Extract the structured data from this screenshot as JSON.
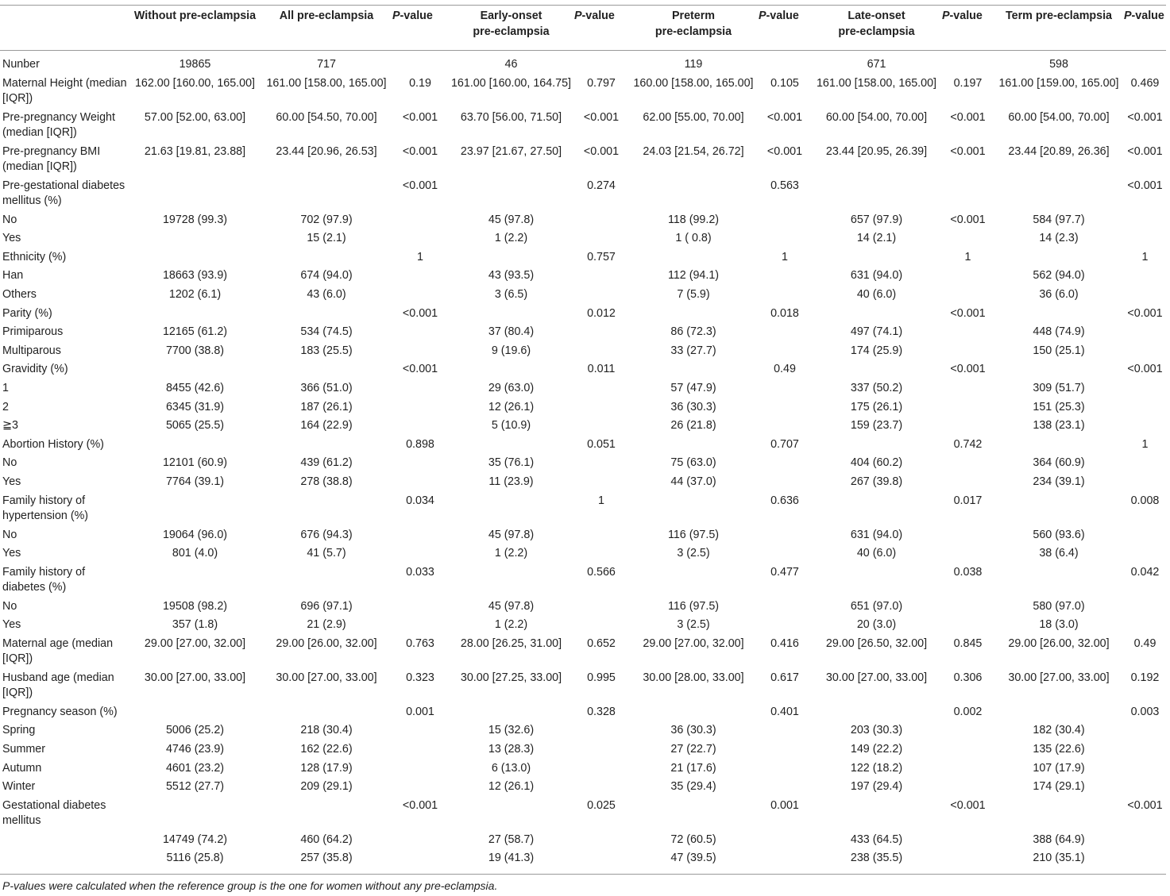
{
  "header": {
    "col0": "",
    "col1": "Without pre-eclampsia",
    "col2": "All pre-eclampsia",
    "p_italic": "P",
    "p_rest": "-value",
    "col4_line1": "Early-onset",
    "col4_line2": "pre-eclampsia",
    "col6_line1": "Preterm",
    "col6_line2": "pre-eclampsia",
    "col8_line1": "Late-onset",
    "col8_line2": "pre-eclampsia",
    "col10": "Term pre-eclampsia"
  },
  "rows": [
    {
      "c": [
        "Nunber",
        "19865",
        "717",
        "",
        "46",
        "",
        "119",
        "",
        "671",
        "",
        "598",
        ""
      ]
    },
    {
      "c": [
        "Maternal Height (median [IQR])",
        "162.00 [160.00, 165.00]",
        "161.00 [158.00, 165.00]",
        "0.19",
        "161.00 [160.00, 164.75]",
        "0.797",
        "160.00 [158.00, 165.00]",
        "0.105",
        "161.00 [158.00, 165.00]",
        "0.197",
        "161.00 [159.00, 165.00]",
        "0.469"
      ]
    },
    {
      "c": [
        "Pre-pregnancy Weight (median [IQR])",
        "57.00 [52.00, 63.00]",
        "60.00 [54.50, 70.00]",
        "<0.001",
        "63.70 [56.00, 71.50]",
        "<0.001",
        "62.00 [55.00, 70.00]",
        "<0.001",
        "60.00 [54.00, 70.00]",
        "<0.001",
        "60.00 [54.00, 70.00]",
        "<0.001"
      ]
    },
    {
      "c": [
        "Pre-pregnancy BMI (median [IQR])",
        "21.63 [19.81, 23.88]",
        "23.44 [20.96, 26.53]",
        "<0.001",
        "23.97 [21.67, 27.50]",
        "<0.001",
        "24.03 [21.54, 26.72]",
        "<0.001",
        "23.44 [20.95, 26.39]",
        "<0.001",
        "23.44 [20.89, 26.36]",
        "<0.001"
      ]
    },
    {
      "c": [
        "Pre-gestational diabetes mellitus (%)",
        "",
        "",
        "<0.001",
        "",
        "0.274",
        "",
        "0.563",
        "",
        "",
        "",
        "<0.001"
      ]
    },
    {
      "c": [
        "No",
        "19728 (99.3)",
        "702 (97.9)",
        "",
        "45 (97.8)",
        "",
        "118 (99.2)",
        "",
        "657 (97.9)",
        "<0.001",
        "584 (97.7)",
        ""
      ]
    },
    {
      "c": [
        "Yes",
        "",
        "15 (2.1)",
        "",
        "1 (2.2)",
        "",
        "1 ( 0.8)",
        "",
        "14 (2.1)",
        "",
        "14 (2.3)",
        ""
      ]
    },
    {
      "c": [
        "Ethnicity (%)",
        "",
        "",
        "1",
        "",
        "0.757",
        "",
        "1",
        "",
        "1",
        "",
        "1"
      ]
    },
    {
      "c": [
        "Han",
        "18663 (93.9)",
        "674 (94.0)",
        "",
        "43 (93.5)",
        "",
        "112 (94.1)",
        "",
        "631 (94.0)",
        "",
        "562 (94.0)",
        ""
      ]
    },
    {
      "c": [
        "Others",
        "1202 (6.1)",
        "43 (6.0)",
        "",
        "3 (6.5)",
        "",
        "7 (5.9)",
        "",
        "40 (6.0)",
        "",
        "36 (6.0)",
        ""
      ]
    },
    {
      "c": [
        "Parity (%)",
        "",
        "",
        "<0.001",
        "",
        "0.012",
        "",
        "0.018",
        "",
        "<0.001",
        "",
        "<0.001"
      ]
    },
    {
      "c": [
        "Primiparous",
        "12165 (61.2)",
        "534 (74.5)",
        "",
        "37 (80.4)",
        "",
        "86 (72.3)",
        "",
        "497 (74.1)",
        "",
        "448 (74.9)",
        ""
      ]
    },
    {
      "c": [
        "Multiparous",
        "7700 (38.8)",
        "183 (25.5)",
        "",
        "9 (19.6)",
        "",
        "33 (27.7)",
        "",
        "174 (25.9)",
        "",
        "150 (25.1)",
        ""
      ]
    },
    {
      "c": [
        "Gravidity (%)",
        "",
        "",
        "<0.001",
        "",
        "0.011",
        "",
        "0.49",
        "",
        "<0.001",
        "",
        "<0.001"
      ]
    },
    {
      "c": [
        "1",
        "8455 (42.6)",
        "366 (51.0)",
        "",
        "29 (63.0)",
        "",
        "57 (47.9)",
        "",
        "337 (50.2)",
        "",
        "309 (51.7)",
        ""
      ]
    },
    {
      "c": [
        "2",
        "6345 (31.9)",
        "187 (26.1)",
        "",
        "12 (26.1)",
        "",
        "36 (30.3)",
        "",
        "175 (26.1)",
        "",
        "151 (25.3)",
        ""
      ]
    },
    {
      "c": [
        "≧3",
        "5065 (25.5)",
        "164 (22.9)",
        "",
        "5 (10.9)",
        "",
        "26 (21.8)",
        "",
        "159 (23.7)",
        "",
        "138 (23.1)",
        ""
      ]
    },
    {
      "c": [
        "Abortion History (%)",
        "",
        "",
        "0.898",
        "",
        "0.051",
        "",
        "0.707",
        "",
        "0.742",
        "",
        "1"
      ]
    },
    {
      "c": [
        "No",
        "12101 (60.9)",
        "439 (61.2)",
        "",
        "35 (76.1)",
        "",
        "75 (63.0)",
        "",
        "404 (60.2)",
        "",
        "364 (60.9)",
        ""
      ]
    },
    {
      "c": [
        "Yes",
        "7764 (39.1)",
        "278 (38.8)",
        "",
        "11 (23.9)",
        "",
        "44 (37.0)",
        "",
        "267 (39.8)",
        "",
        "234 (39.1)",
        ""
      ]
    },
    {
      "c": [
        "Family history of hypertension (%)",
        "",
        "",
        "0.034",
        "",
        "1",
        "",
        "0.636",
        "",
        "0.017",
        "",
        "0.008"
      ]
    },
    {
      "c": [
        "No",
        "19064 (96.0)",
        "676 (94.3)",
        "",
        "45 (97.8)",
        "",
        "116 (97.5)",
        "",
        "631 (94.0)",
        "",
        "560 (93.6)",
        ""
      ]
    },
    {
      "c": [
        "Yes",
        "801 (4.0)",
        "41 (5.7)",
        "",
        "1 (2.2)",
        "",
        "3 (2.5)",
        "",
        "40 (6.0)",
        "",
        "38 (6.4)",
        ""
      ]
    },
    {
      "c": [
        "Family history of diabetes (%)",
        "",
        "",
        "0.033",
        "",
        "0.566",
        "",
        "0.477",
        "",
        "0.038",
        "",
        "0.042"
      ]
    },
    {
      "c": [
        "No",
        "19508 (98.2)",
        "696 (97.1)",
        "",
        "45 (97.8)",
        "",
        "116 (97.5)",
        "",
        "651 (97.0)",
        "",
        "580 (97.0)",
        ""
      ]
    },
    {
      "c": [
        "Yes",
        "357 (1.8)",
        "21 (2.9)",
        "",
        "1 (2.2)",
        "",
        "3 (2.5)",
        "",
        "20 (3.0)",
        "",
        "18 (3.0)",
        ""
      ]
    },
    {
      "c": [
        "Maternal age (median [IQR])",
        "29.00 [27.00, 32.00]",
        "29.00 [26.00, 32.00]",
        "0.763",
        "28.00 [26.25, 31.00]",
        "0.652",
        "29.00 [27.00, 32.00]",
        "0.416",
        "29.00 [26.50, 32.00]",
        "0.845",
        "29.00 [26.00, 32.00]",
        "0.49"
      ]
    },
    {
      "c": [
        "Husband age (median [IQR])",
        "30.00 [27.00, 33.00]",
        "30.00 [27.00, 33.00]",
        "0.323",
        "30.00 [27.25, 33.00]",
        "0.995",
        "30.00 [28.00, 33.00]",
        "0.617",
        "30.00 [27.00, 33.00]",
        "0.306",
        "30.00 [27.00, 33.00]",
        "0.192"
      ]
    },
    {
      "c": [
        "Pregnancy season (%)",
        "",
        "",
        "0.001",
        "",
        "0.328",
        "",
        "0.401",
        "",
        "0.002",
        "",
        "0.003"
      ]
    },
    {
      "c": [
        "Spring",
        "5006 (25.2)",
        "218 (30.4)",
        "",
        "15 (32.6)",
        "",
        "36 (30.3)",
        "",
        "203 (30.3)",
        "",
        "182 (30.4)",
        ""
      ]
    },
    {
      "c": [
        "Summer",
        "4746 (23.9)",
        "162 (22.6)",
        "",
        "13 (28.3)",
        "",
        "27 (22.7)",
        "",
        "149 (22.2)",
        "",
        "135 (22.6)",
        ""
      ]
    },
    {
      "c": [
        "Autumn",
        "4601 (23.2)",
        "128 (17.9)",
        "",
        "6 (13.0)",
        "",
        "21 (17.6)",
        "",
        "122 (18.2)",
        "",
        "107 (17.9)",
        ""
      ]
    },
    {
      "c": [
        "Winter",
        "5512 (27.7)",
        "209 (29.1)",
        "",
        "12 (26.1)",
        "",
        "35 (29.4)",
        "",
        "197 (29.4)",
        "",
        "174 (29.1)",
        ""
      ]
    },
    {
      "c": [
        "Gestational diabetes mellitus",
        "",
        "",
        "<0.001",
        "",
        "0.025",
        "",
        "0.001",
        "",
        "<0.001",
        "",
        "<0.001"
      ]
    },
    {
      "c": [
        "",
        "14749 (74.2)",
        "460 (64.2)",
        "",
        "27 (58.7)",
        "",
        "72 (60.5)",
        "",
        "433 (64.5)",
        "",
        "388 (64.9)",
        ""
      ]
    },
    {
      "c": [
        "",
        "5116 (25.8)",
        "257 (35.8)",
        "",
        "19 (41.3)",
        "",
        "47 (39.5)",
        "",
        "238 (35.5)",
        "",
        "210 (35.1)",
        ""
      ]
    }
  ],
  "footnote": {
    "p_italic": "P",
    "rest": "-values were calculated when the reference group is the one for women without any pre-eclampsia."
  }
}
